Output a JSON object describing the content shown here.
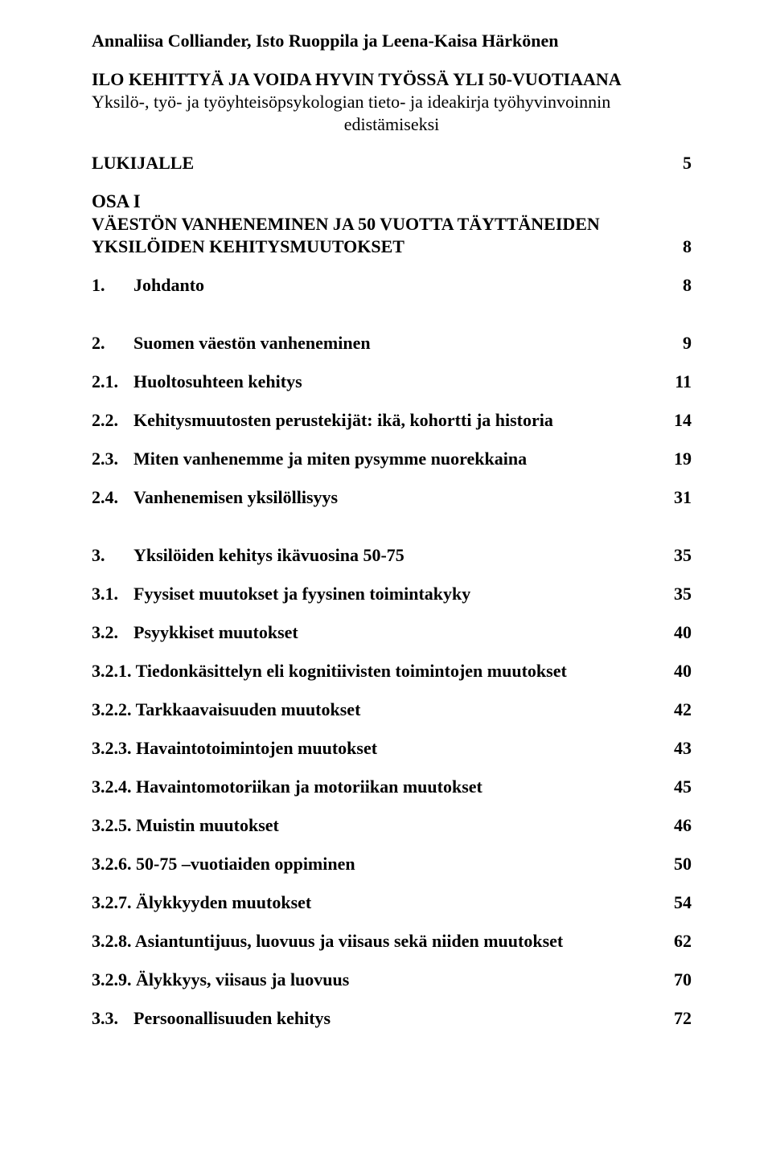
{
  "authors": "Annaliisa Colliander, Isto Ruoppila ja Leena-Kaisa Härkönen",
  "title": "ILO KEHITTYÄ JA VOIDA HYVIN TYÖSSÄ YLI 50-VUOTIAANA",
  "subtitle": "Yksilö-, työ- ja työyhteisöpsykologian tieto- ja ideakirja työhyvinvoinnin",
  "subtitle2": "edistämiseksi",
  "lukijalle": {
    "label": "LUKIJALLE",
    "page": "5"
  },
  "osa1": "OSA I",
  "osa1_sub1": "VÄESTÖN VANHENEMINEN JA 50 VUOTTA TÄYTTÄNEIDEN",
  "osa1_sub2": {
    "label": "YKSILÖIDEN KEHITYSMUUTOKSET",
    "page": "8"
  },
  "e1": {
    "num": "1.",
    "label": "Johdanto",
    "page": "8"
  },
  "e2": {
    "num": "2.",
    "label": "Suomen väestön vanheneminen",
    "page": "9"
  },
  "e3": {
    "num": "2.1.",
    "label": "Huoltosuhteen kehitys",
    "page": "11"
  },
  "e4": {
    "num": "2.2.",
    "label": "Kehitysmuutosten perustekijät: ikä, kohortti ja historia",
    "page": "14"
  },
  "e5": {
    "num": "2.3.",
    "label": "Miten vanhenemme ja miten pysymme nuorekkaina",
    "page": "19"
  },
  "e6": {
    "num": "2.4.",
    "label": "Vanhenemisen yksilöllisyys",
    "page": "31"
  },
  "e7": {
    "num": "3.",
    "label": "Yksilöiden kehitys ikävuosina 50-75",
    "page": "35"
  },
  "e8": {
    "num": "3.1.",
    "label": "Fyysiset muutokset ja fyysinen toimintakyky",
    "page": "35"
  },
  "e9": {
    "num": "3.2.",
    "label": "Psyykkiset muutokset",
    "page": "40"
  },
  "e10": {
    "num": "3.2.1.",
    "label": "Tiedonkäsittelyn eli kognitiivisten toimintojen muutokset",
    "page": "40"
  },
  "e11": {
    "num": "3.2.2.",
    "label": "Tarkkaavaisuuden muutokset",
    "page": "42"
  },
  "e12": {
    "num": "3.2.3.",
    "label": "Havaintotoimintojen muutokset",
    "page": "43"
  },
  "e13": {
    "num": "3.2.4.",
    "label": "Havaintomotoriikan ja motoriikan muutokset",
    "page": "45"
  },
  "e14": {
    "num": "3.2.5.",
    "label": "Muistin muutokset",
    "page": "46"
  },
  "e15": {
    "num": "3.2.6.",
    "label": "50-75 –vuotiaiden oppiminen",
    "page": "50"
  },
  "e16": {
    "num": "3.2.7.",
    "label": "Älykkyyden muutokset",
    "page": "54"
  },
  "e17": {
    "num": "3.2.8.",
    "label": "Asiantuntijuus, luovuus ja viisaus sekä niiden muutokset",
    "page": "62"
  },
  "e18": {
    "num": "3.2.9.",
    "label": "Älykkyys, viisaus ja luovuus",
    "page": "70"
  },
  "e19": {
    "num": "3.3.",
    "label": "Persoonallisuuden kehitys",
    "page": "72"
  }
}
